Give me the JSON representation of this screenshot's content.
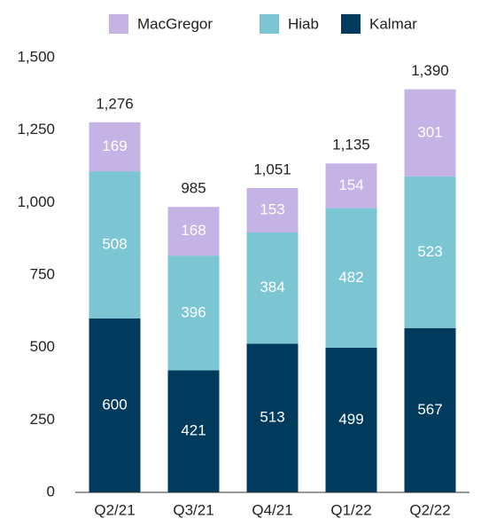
{
  "chart_data": {
    "type": "stacked_bar",
    "categories": [
      "Q2/21",
      "Q3/21",
      "Q4/21",
      "Q1/22",
      "Q2/22"
    ],
    "series": [
      {
        "name": "MacGregor",
        "color": "#c5b3e6",
        "values": [
          169,
          168,
          153,
          154,
          301
        ]
      },
      {
        "name": "Hiab",
        "color": "#7cc6d4",
        "values": [
          508,
          396,
          384,
          482,
          523
        ]
      },
      {
        "name": "Kalmar",
        "color": "#003a5d",
        "values": [
          600,
          421,
          513,
          499,
          567
        ]
      }
    ],
    "total_labels": [
      "1,276",
      "985",
      "1,051",
      "1,135",
      "1,390"
    ],
    "ylim": [
      0,
      1500
    ],
    "yticks": [
      0,
      250,
      500,
      750,
      {
        "value": 1000,
        "label": "1,000"
      },
      {
        "value": 1250,
        "label": "1,250"
      },
      {
        "value": 1500,
        "label": "1,500"
      }
    ],
    "grid": false,
    "legend": "top"
  }
}
